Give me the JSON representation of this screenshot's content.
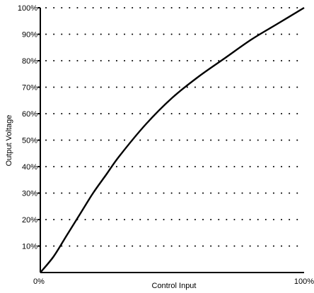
{
  "chart_data": {
    "type": "line",
    "title": "",
    "xlabel": "Control Input",
    "ylabel": "Output Voltage",
    "xlim": [
      0,
      100
    ],
    "ylim": [
      0,
      100
    ],
    "grid": true,
    "x_tick_labels": [
      "0%",
      "100%"
    ],
    "y_tick_labels": [
      "10%",
      "20%",
      "30%",
      "40%",
      "50%",
      "60%",
      "70%",
      "80%",
      "90%",
      "100%"
    ],
    "series": [
      {
        "x": [
          0,
          5,
          10,
          15,
          20,
          25,
          30,
          40,
          50,
          60,
          70,
          80,
          90,
          100
        ],
        "y": [
          0,
          6,
          14,
          22,
          30,
          37,
          44,
          56,
          66,
          74,
          81,
          88,
          94,
          100
        ]
      }
    ],
    "colors": {
      "line": "#000000",
      "axis": "#000000",
      "grid": "#000000"
    }
  }
}
